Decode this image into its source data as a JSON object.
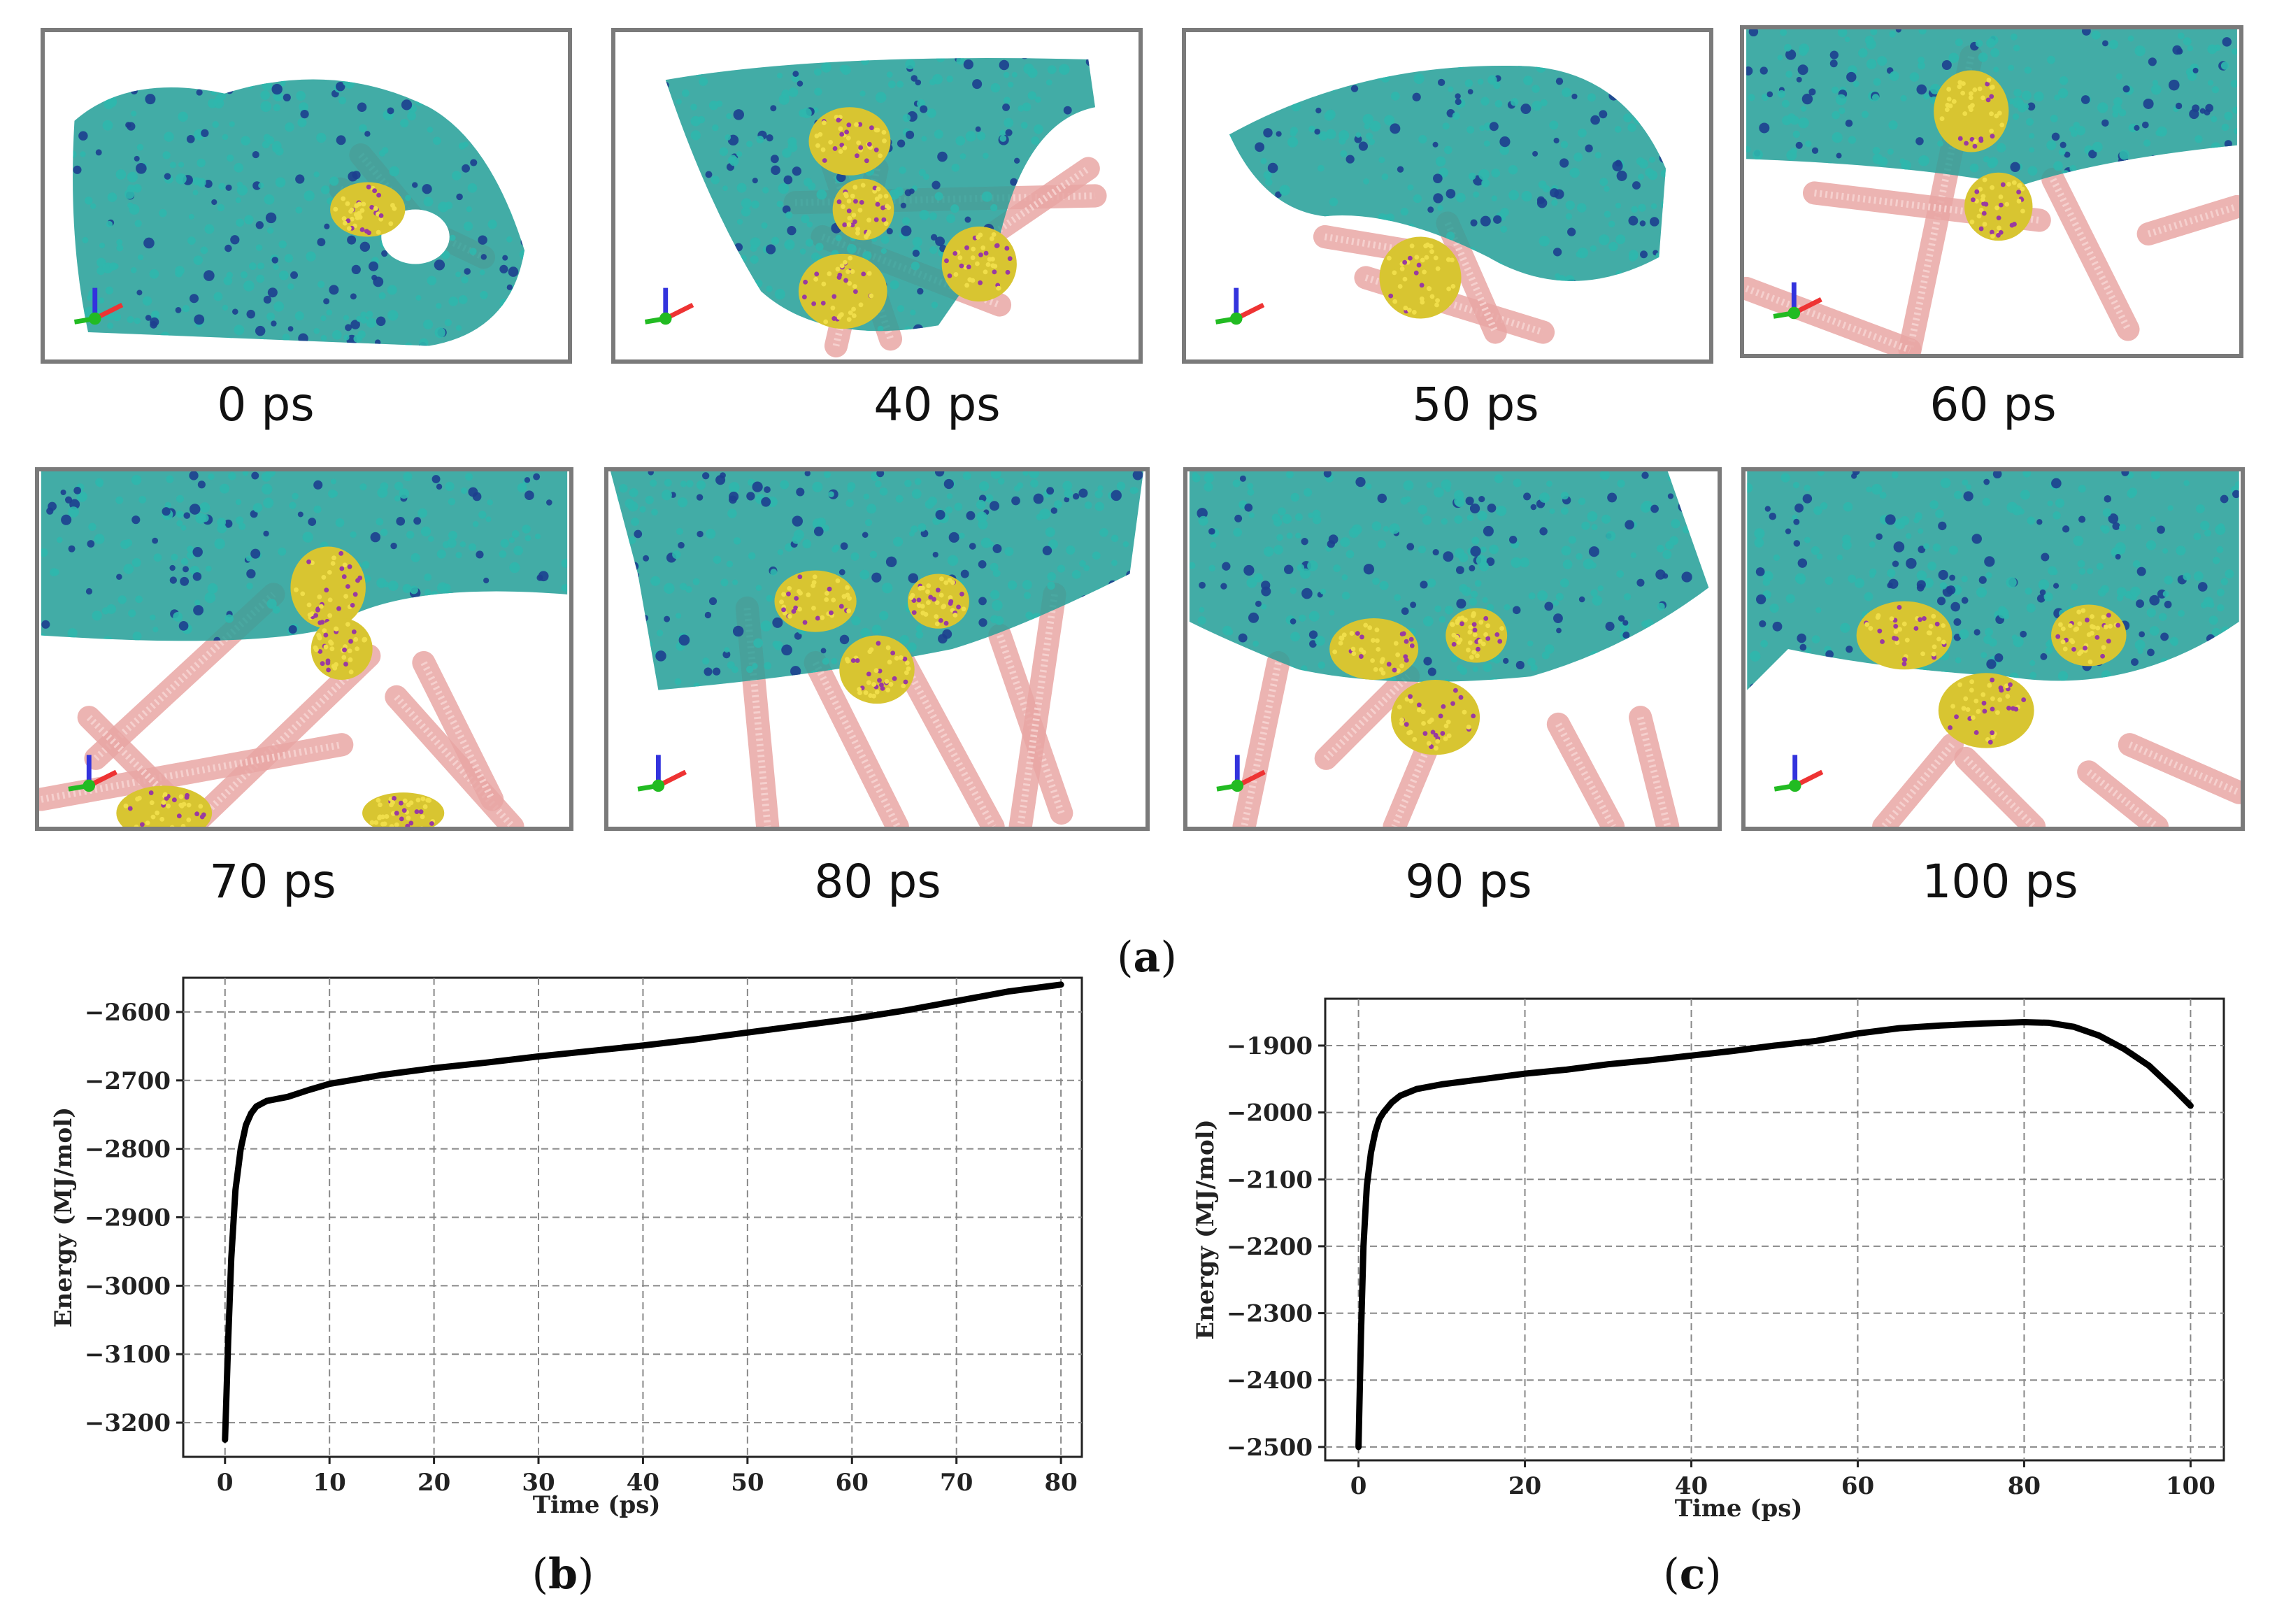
{
  "figure": {
    "label_a": "a",
    "label_b": "b",
    "label_c": "c",
    "snapshots": [
      {
        "label": "0 ps"
      },
      {
        "label": "40 ps"
      },
      {
        "label": "50 ps"
      },
      {
        "label": "60 ps"
      },
      {
        "label": "70 ps"
      },
      {
        "label": "80 ps"
      },
      {
        "label": "90 ps"
      },
      {
        "label": "100 ps"
      }
    ]
  },
  "colors": {
    "membrane": "#1f9e96",
    "membrane_dark": "#1d3f8f",
    "tubes": "#e9a7a5",
    "cluster": "#d8c531",
    "cluster_dark": "#9a3aa0",
    "curve": "#000000",
    "grid": "#888888"
  },
  "chart_data": [
    {
      "id": "b",
      "type": "line",
      "title": "",
      "xlabel": "Time (ps)",
      "ylabel": "Energy (MJ/mol)",
      "xlim": [
        -4,
        82
      ],
      "ylim": [
        -3250,
        -2550
      ],
      "xticks": [
        0,
        10,
        20,
        30,
        40,
        50,
        60,
        70,
        80
      ],
      "yticks": [
        -2600,
        -2700,
        -2800,
        -2900,
        -3000,
        -3100,
        -3200
      ],
      "grid": true,
      "series": [
        {
          "name": "energy",
          "x": [
            0,
            0.3,
            0.6,
            1,
            1.5,
            2,
            2.5,
            3,
            4,
            5,
            6,
            8,
            10,
            15,
            20,
            25,
            30,
            35,
            40,
            45,
            50,
            55,
            60,
            65,
            70,
            75,
            80
          ],
          "y": [
            -3225,
            -3080,
            -2960,
            -2860,
            -2800,
            -2765,
            -2748,
            -2738,
            -2730,
            -2727,
            -2724,
            -2714,
            -2705,
            -2692,
            -2682,
            -2674,
            -2665,
            -2657,
            -2649,
            -2640,
            -2630,
            -2620,
            -2610,
            -2598,
            -2584,
            -2570,
            -2560
          ]
        }
      ]
    },
    {
      "id": "c",
      "type": "line",
      "title": "",
      "xlabel": "Time (ps)",
      "ylabel": "Energy (MJ/mol)",
      "xlim": [
        -4,
        104
      ],
      "ylim": [
        -2520,
        -1830
      ],
      "xticks": [
        0,
        20,
        40,
        60,
        80,
        100
      ],
      "yticks": [
        -1900,
        -2000,
        -2100,
        -2200,
        -2300,
        -2400,
        -2500
      ],
      "grid": true,
      "series": [
        {
          "name": "energy",
          "x": [
            0,
            0.3,
            0.6,
            1,
            1.5,
            2,
            2.5,
            3,
            4,
            5,
            7,
            10,
            15,
            20,
            25,
            30,
            35,
            40,
            45,
            50,
            55,
            60,
            65,
            70,
            75,
            80,
            83,
            86,
            89,
            92,
            95,
            98,
            100
          ],
          "y": [
            -2500,
            -2330,
            -2200,
            -2110,
            -2060,
            -2030,
            -2010,
            -2000,
            -1985,
            -1975,
            -1965,
            -1958,
            -1950,
            -1942,
            -1936,
            -1928,
            -1922,
            -1915,
            -1908,
            -1900,
            -1893,
            -1882,
            -1874,
            -1870,
            -1867,
            -1865,
            -1866,
            -1872,
            -1885,
            -1905,
            -1930,
            -1965,
            -1990
          ]
        }
      ]
    }
  ]
}
